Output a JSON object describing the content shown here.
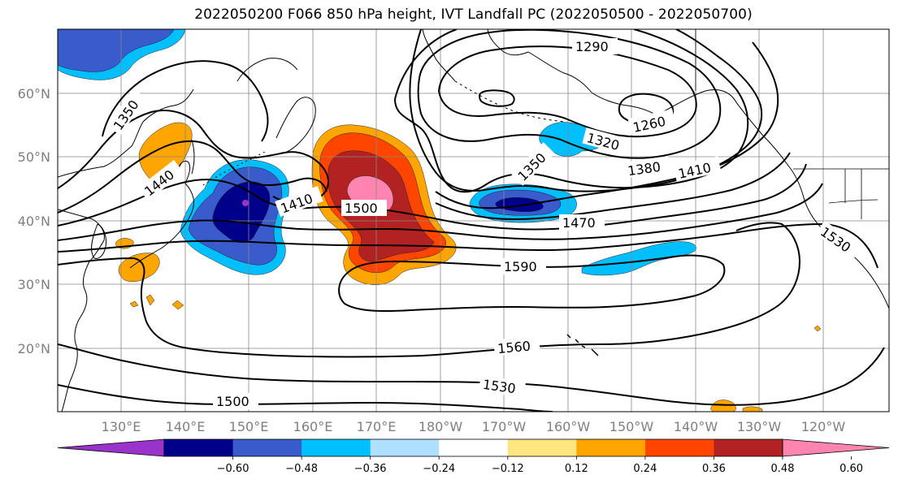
{
  "title": "2022050200 F066 850 hPa height, IVT Landfall PC (2022050500 - 2022050700)",
  "map": {
    "lat_labels": [
      "60°N",
      "50°N",
      "40°N",
      "30°N",
      "20°N"
    ],
    "lon_labels": [
      "130°E",
      "140°E",
      "150°E",
      "160°E",
      "170°E",
      "180°W",
      "170°W",
      "160°W",
      "150°W",
      "140°W",
      "130°W",
      "120°W"
    ],
    "contour_labels": [
      "1290",
      "1260",
      "1320",
      "1350",
      "1350",
      "1380",
      "1410",
      "1410",
      "1440",
      "1470",
      "1500",
      "1530",
      "1590",
      "1560",
      "1530",
      "1500"
    ]
  },
  "colorbar": {
    "colors": [
      "#9933cc",
      "#00008b",
      "#3a5bcc",
      "#00bfff",
      "#b0e0ff",
      "#ffffff",
      "#ffe680",
      "#ffa500",
      "#ff4500",
      "#b22222",
      "#ff85b0"
    ],
    "tick_labels": [
      "−0.60",
      "−0.48",
      "−0.36",
      "−0.24",
      "−0.12",
      "0.12",
      "0.24",
      "0.36",
      "0.48",
      "0.60"
    ]
  }
}
